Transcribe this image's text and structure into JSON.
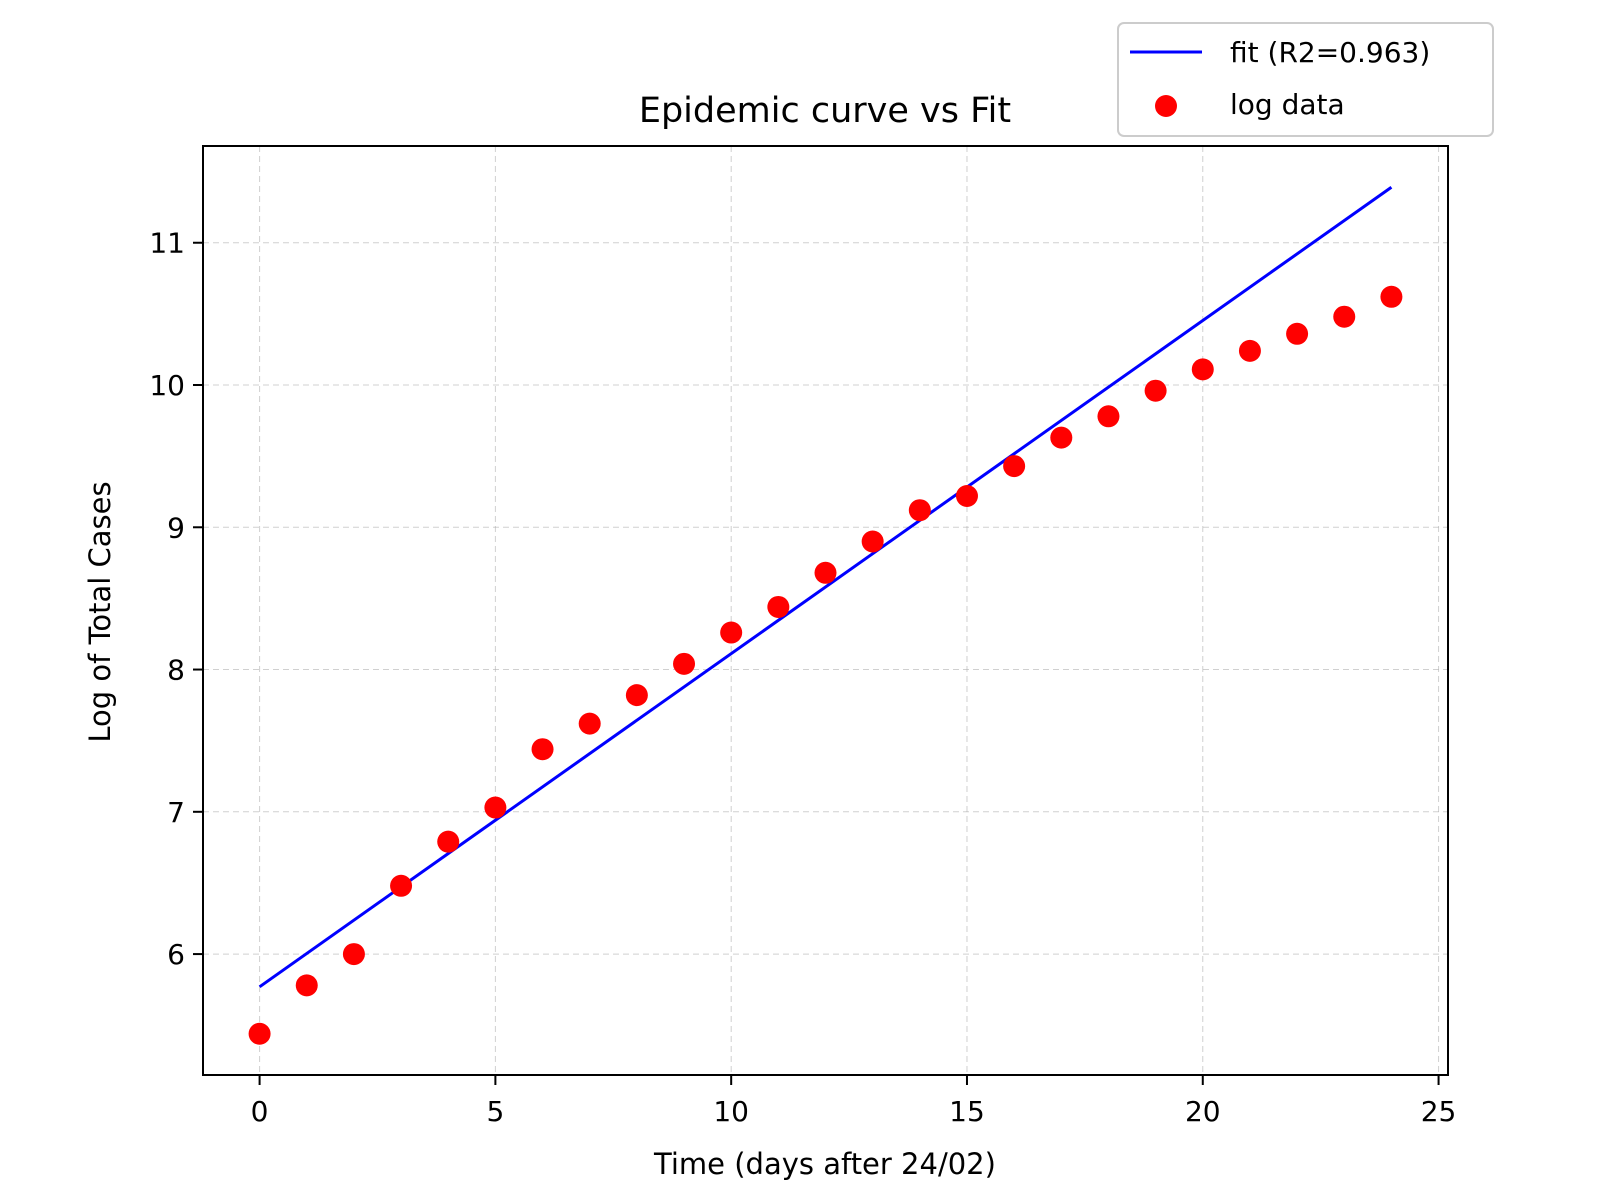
{
  "chart_data": {
    "type": "scatter",
    "title": "Epidemic curve vs Fit",
    "xlabel": "Time (days after 24/02)",
    "ylabel": "Log of Total Cases",
    "xlim": [
      -1.2,
      25.2
    ],
    "ylim": [
      5.15,
      11.68
    ],
    "xticks": [
      0,
      5,
      10,
      15,
      20,
      25
    ],
    "yticks": [
      6,
      7,
      8,
      9,
      10,
      11
    ],
    "grid": true,
    "legend_position": "top-right, above plot",
    "series": [
      {
        "name": "fit (R2=0.963)",
        "type": "line",
        "color": "#0000ff",
        "x": [
          0,
          24
        ],
        "y": [
          5.77,
          11.39
        ]
      },
      {
        "name": "log data",
        "type": "scatter",
        "color": "#ff0000",
        "x": [
          0,
          1,
          2,
          3,
          4,
          5,
          6,
          7,
          8,
          9,
          10,
          11,
          12,
          13,
          14,
          15,
          16,
          17,
          18,
          19,
          20,
          21,
          22,
          23,
          24
        ],
        "y": [
          5.44,
          5.78,
          6.0,
          6.48,
          6.79,
          7.03,
          7.44,
          7.62,
          7.82,
          8.04,
          8.26,
          8.44,
          8.68,
          8.9,
          9.12,
          9.22,
          9.43,
          9.63,
          9.78,
          9.96,
          10.11,
          10.24,
          10.36,
          10.48,
          10.62
        ]
      }
    ]
  }
}
